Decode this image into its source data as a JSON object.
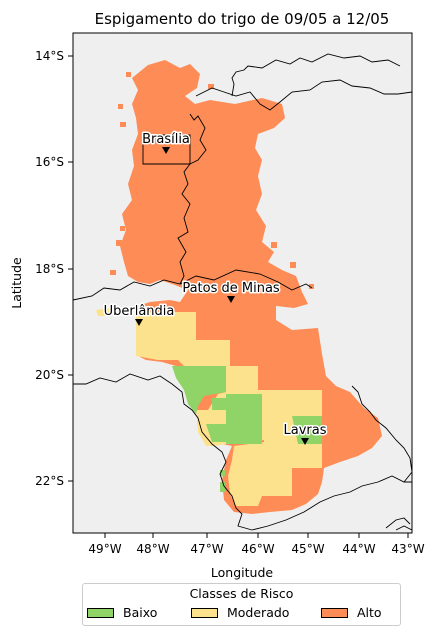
{
  "title": "Espigamento do trigo de 09/05 a 12/05",
  "xlabel": "Longitude",
  "ylabel": "Latitude",
  "x_ticks": [
    "49°W",
    "48°W",
    "47°W",
    "46°W",
    "45°W",
    "44°W",
    "43°W"
  ],
  "y_ticks": [
    "14°S",
    "16°S",
    "18°S",
    "20°S",
    "22°S"
  ],
  "legend": {
    "title": "Classes de Risco",
    "items": [
      {
        "label": "Baixo",
        "color": "#90d467"
      },
      {
        "label": "Moderado",
        "color": "#fde28e"
      },
      {
        "label": "Alto",
        "color": "#fe8c56"
      }
    ]
  },
  "colors": {
    "background": "#efefef",
    "alto": "#fe8c56",
    "moderado": "#fde28e",
    "baixo": "#90d467"
  },
  "extent": {
    "lon": [
      -49.6,
      -42.9
    ],
    "lat": [
      -23.0,
      -13.5
    ]
  },
  "cities": [
    {
      "name": "Brasília",
      "lon": -47.8,
      "lat": -15.8
    },
    {
      "name": "Patos de Minas",
      "lon": -46.5,
      "lat": -18.6
    },
    {
      "name": "Uberlândia",
      "lon": -48.3,
      "lat": -18.95
    },
    {
      "name": "Lavras",
      "lon": -45.0,
      "lat": -21.25
    }
  ]
}
